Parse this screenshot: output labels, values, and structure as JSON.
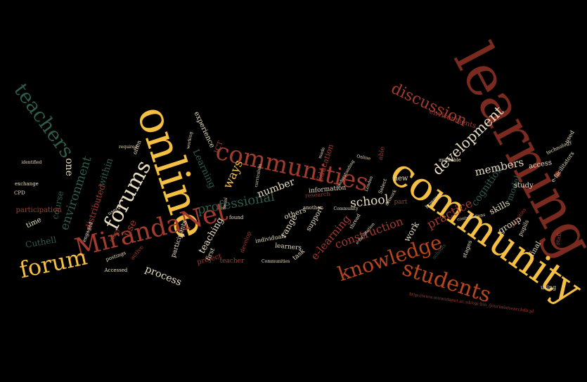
{
  "colors": {
    "background": "#000000",
    "yellow": "#f5c042",
    "orange": "#b8461c",
    "rust": "#a33a2e",
    "green": "#2f5b4a",
    "cream": "#e8dcc0",
    "dark_rust": "#7a2a1e"
  },
  "words": [
    {
      "text": "learning",
      "color": "dark_rust"
    },
    {
      "text": "online",
      "color": "yellow"
    },
    {
      "text": "community",
      "color": "yellow"
    },
    {
      "text": "communities",
      "color": "rust"
    },
    {
      "text": "MirandaNet",
      "color": "rust"
    },
    {
      "text": "students",
      "color": "orange"
    },
    {
      "text": "knowledge",
      "color": "orange"
    },
    {
      "text": "teachers",
      "color": "green"
    },
    {
      "text": "forum",
      "color": "yellow"
    },
    {
      "text": "forums",
      "color": "cream"
    },
    {
      "text": "professional",
      "color": "green"
    },
    {
      "text": "development",
      "color": "cream"
    },
    {
      "text": "discussion",
      "color": "rust"
    },
    {
      "text": "environment",
      "color": "green"
    },
    {
      "text": "practice",
      "color": "rust"
    },
    {
      "text": "cognition",
      "color": "green"
    },
    {
      "text": "members",
      "color": "cream"
    },
    {
      "text": "school",
      "color": "cream"
    },
    {
      "text": "ways",
      "color": "yellow"
    },
    {
      "text": "number",
      "color": "cream"
    },
    {
      "text": "process",
      "color": "cream"
    },
    {
      "text": "teaching",
      "color": "cream"
    },
    {
      "text": "construction",
      "color": "rust"
    },
    {
      "text": "e-learning",
      "color": "rust"
    },
    {
      "text": "distributed",
      "color": "rust"
    },
    {
      "text": "Learning",
      "color": "green"
    },
    {
      "text": "within",
      "color": "green"
    },
    {
      "text": "one",
      "color": "cream"
    },
    {
      "text": "use",
      "color": "rust"
    },
    {
      "text": "course",
      "color": "green"
    },
    {
      "text": "skills",
      "color": "cream"
    },
    {
      "text": "model",
      "color": "green"
    },
    {
      "text": "group",
      "color": "cream"
    },
    {
      "text": "work",
      "color": "cream"
    },
    {
      "text": "Cuthell",
      "color": "green"
    },
    {
      "text": "range",
      "color": "cream"
    },
    {
      "text": "Education",
      "color": "rust"
    },
    {
      "text": "support",
      "color": "cream"
    },
    {
      "text": "others",
      "color": "cream"
    },
    {
      "text": "participation",
      "color": "rust"
    },
    {
      "text": "project",
      "color": "rust"
    },
    {
      "text": "experience",
      "color": "cream"
    },
    {
      "text": "ICT",
      "color": "rust"
    },
    {
      "text": "access",
      "color": "cream"
    },
    {
      "text": "environments",
      "color": "rust"
    },
    {
      "text": "study",
      "color": "cream"
    },
    {
      "text": "final",
      "color": "cream"
    },
    {
      "text": "time",
      "color": "cream"
    },
    {
      "text": "participants",
      "color": "cream"
    },
    {
      "text": "information",
      "color": "cream"
    },
    {
      "text": "learners",
      "color": "cream"
    },
    {
      "text": "task",
      "color": "cream"
    },
    {
      "text": "part",
      "color": "rust"
    },
    {
      "text": "new",
      "color": "cream"
    },
    {
      "text": "first",
      "color": "cream"
    },
    {
      "text": "teacher",
      "color": "rust"
    },
    {
      "text": "individuals",
      "color": "cream"
    },
    {
      "text": "research",
      "color": "rust"
    },
    {
      "text": "stages",
      "color": "cream"
    },
    {
      "text": "pupils",
      "color": "cream"
    },
    {
      "text": "e-facilitators",
      "color": "cream"
    },
    {
      "text": "used",
      "color": "cream"
    },
    {
      "text": "using",
      "color": "cream"
    },
    {
      "text": "staff",
      "color": "rust"
    },
    {
      "text": "schools",
      "color": "green"
    },
    {
      "text": "active",
      "color": "rust"
    },
    {
      "text": "often",
      "color": "cream"
    },
    {
      "text": "many",
      "color": "rust"
    },
    {
      "text": "postings",
      "color": "cream"
    },
    {
      "text": "exchange",
      "color": "cream"
    },
    {
      "text": "CPD",
      "color": "cream"
    },
    {
      "text": "technology",
      "color": "cream"
    },
    {
      "text": "activities",
      "color": "rust"
    },
    {
      "text": "another",
      "color": "cream"
    },
    {
      "text": "Select",
      "color": "cream"
    },
    {
      "text": "London",
      "color": "cream"
    },
    {
      "text": "thread",
      "color": "cream"
    },
    {
      "text": "develop",
      "color": "rust"
    },
    {
      "text": "Accessed",
      "color": "cream"
    },
    {
      "text": "found",
      "color": "cream"
    },
    {
      "text": "engaged",
      "color": "cream"
    },
    {
      "text": "identified",
      "color": "cream"
    },
    {
      "text": "required",
      "color": "cream"
    },
    {
      "text": "available",
      "color": "cream"
    },
    {
      "text": "however",
      "color": "cream"
    },
    {
      "text": "contributions",
      "color": "cream"
    },
    {
      "text": "e-facilitation",
      "color": "cream"
    },
    {
      "text": "Community",
      "color": "cream"
    },
    {
      "text": "Communities",
      "color": "cream"
    },
    {
      "text": "curriculum",
      "color": "cream"
    },
    {
      "text": "understanding",
      "color": "cream"
    },
    {
      "text": "able",
      "color": "rust"
    },
    {
      "text": "made",
      "color": "cream"
    },
    {
      "text": "Online",
      "color": "cream"
    },
    {
      "text": "network",
      "color": "cream"
    },
    {
      "text": "social",
      "color": "cream"
    },
    {
      "text": "working",
      "color": "cream"
    },
    {
      "text": "users",
      "color": "cream"
    },
    {
      "text": "http://www.mirandanet.ac.uk/cgi-bin_/journals/searchdb.pl",
      "color": "rust"
    }
  ]
}
